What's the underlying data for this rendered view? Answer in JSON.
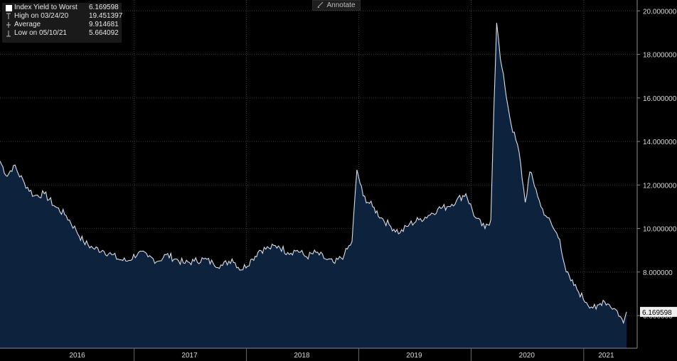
{
  "toolbar": {
    "annotate_label": "Annotate",
    "annotate_icon": "pencil-icon"
  },
  "legend": {
    "rows": [
      {
        "label": "Index Yield to Worst",
        "value": "6.169598",
        "icon": "white-square-icon"
      },
      {
        "label": "High on 03/24/20",
        "value": "19.451397",
        "icon": "high-marker-icon"
      },
      {
        "label": "Average",
        "value": "9.914681",
        "icon": "average-marker-icon"
      },
      {
        "label": "Low on 05/10/21",
        "value": "5.664092",
        "icon": "low-marker-icon"
      }
    ]
  },
  "chart_data": {
    "type": "area",
    "series": [
      {
        "name": "Index Yield to Worst",
        "color": "#d8dce6",
        "fill": "#0e2540",
        "x": [
          "2015-10-23",
          "2015-11-15",
          "2015-12-06",
          "2016-01-10",
          "2016-02-11",
          "2016-03-15",
          "2016-04-20",
          "2016-05-25",
          "2016-06-27",
          "2016-07-20",
          "2016-08-20",
          "2016-09-20",
          "2016-10-20",
          "2016-11-10",
          "2016-12-10",
          "2017-01-15",
          "2017-02-15",
          "2017-03-20",
          "2017-04-15",
          "2017-05-15",
          "2017-06-15",
          "2017-07-15",
          "2017-08-15",
          "2017-09-15",
          "2017-10-15",
          "2017-11-15",
          "2017-12-15",
          "2018-01-20",
          "2018-02-12",
          "2018-03-15",
          "2018-04-15",
          "2018-05-15",
          "2018-06-15",
          "2018-07-15",
          "2018-08-15",
          "2018-09-15",
          "2018-10-15",
          "2018-11-15",
          "2018-12-10",
          "2018-12-26",
          "2019-01-15",
          "2019-02-15",
          "2019-03-15",
          "2019-04-15",
          "2019-05-15",
          "2019-06-15",
          "2019-07-15",
          "2019-08-15",
          "2019-09-15",
          "2019-10-15",
          "2019-11-15",
          "2019-12-15",
          "2020-01-15",
          "2020-02-15",
          "2020-03-05",
          "2020-03-15",
          "2020-03-24",
          "2020-04-05",
          "2020-04-20",
          "2020-05-10",
          "2020-06-05",
          "2020-06-25",
          "2020-07-10",
          "2020-07-30",
          "2020-08-15",
          "2020-09-05",
          "2020-09-25",
          "2020-10-15",
          "2020-11-05",
          "2020-11-20",
          "2020-12-10",
          "2021-01-10",
          "2021-02-10",
          "2021-03-05",
          "2021-03-25",
          "2021-04-20",
          "2021-05-10",
          "2021-05-20"
        ],
        "values": [
          13.1,
          12.4,
          12.9,
          12.1,
          11.5,
          11.6,
          11.0,
          10.6,
          9.9,
          9.4,
          9.1,
          9.0,
          8.8,
          8.6,
          8.5,
          8.9,
          8.7,
          8.5,
          8.8,
          8.6,
          8.4,
          8.5,
          8.6,
          8.4,
          8.3,
          8.6,
          8.1,
          8.6,
          9.0,
          9.1,
          9.2,
          8.9,
          9.0,
          8.7,
          8.9,
          8.6,
          8.4,
          8.8,
          9.4,
          12.7,
          11.5,
          11.0,
          10.5,
          10.1,
          9.8,
          10.2,
          10.4,
          10.6,
          10.9,
          11.0,
          11.3,
          11.6,
          10.5,
          10.0,
          10.4,
          15.5,
          19.45,
          17.8,
          16.5,
          14.8,
          13.5,
          11.2,
          12.6,
          11.8,
          11.0,
          10.5,
          10.0,
          9.5,
          8.0,
          7.6,
          7.2,
          6.6,
          6.3,
          6.7,
          6.5,
          6.2,
          5.66,
          6.17
        ]
      }
    ],
    "ylim": [
      4.5,
      20.5
    ],
    "y_ticks": [
      6,
      8,
      10,
      12,
      14,
      16,
      18,
      20
    ],
    "y_tick_labels": [
      "6.000000",
      "8.000000",
      "10.000000",
      "12.000000",
      "14.000000",
      "16.000000",
      "18.000000",
      "20.000000"
    ],
    "x_tick_labels": [
      {
        "label": "2016",
        "date": "2016-06-30"
      },
      {
        "label": "2017",
        "date": "2017-06-30"
      },
      {
        "label": "2018",
        "date": "2018-06-30"
      },
      {
        "label": "2019",
        "date": "2019-06-30"
      },
      {
        "label": "2020",
        "date": "2020-06-30"
      },
      {
        "label": "2021",
        "date": "2021-03-15"
      }
    ],
    "x_separators": [
      "2017-01-01",
      "2018-01-01",
      "2019-01-01",
      "2020-01-01",
      "2021-01-01"
    ],
    "last_value_label": "6.169598",
    "last_value": 6.169598,
    "grid": true,
    "legend_position": "top-left"
  }
}
